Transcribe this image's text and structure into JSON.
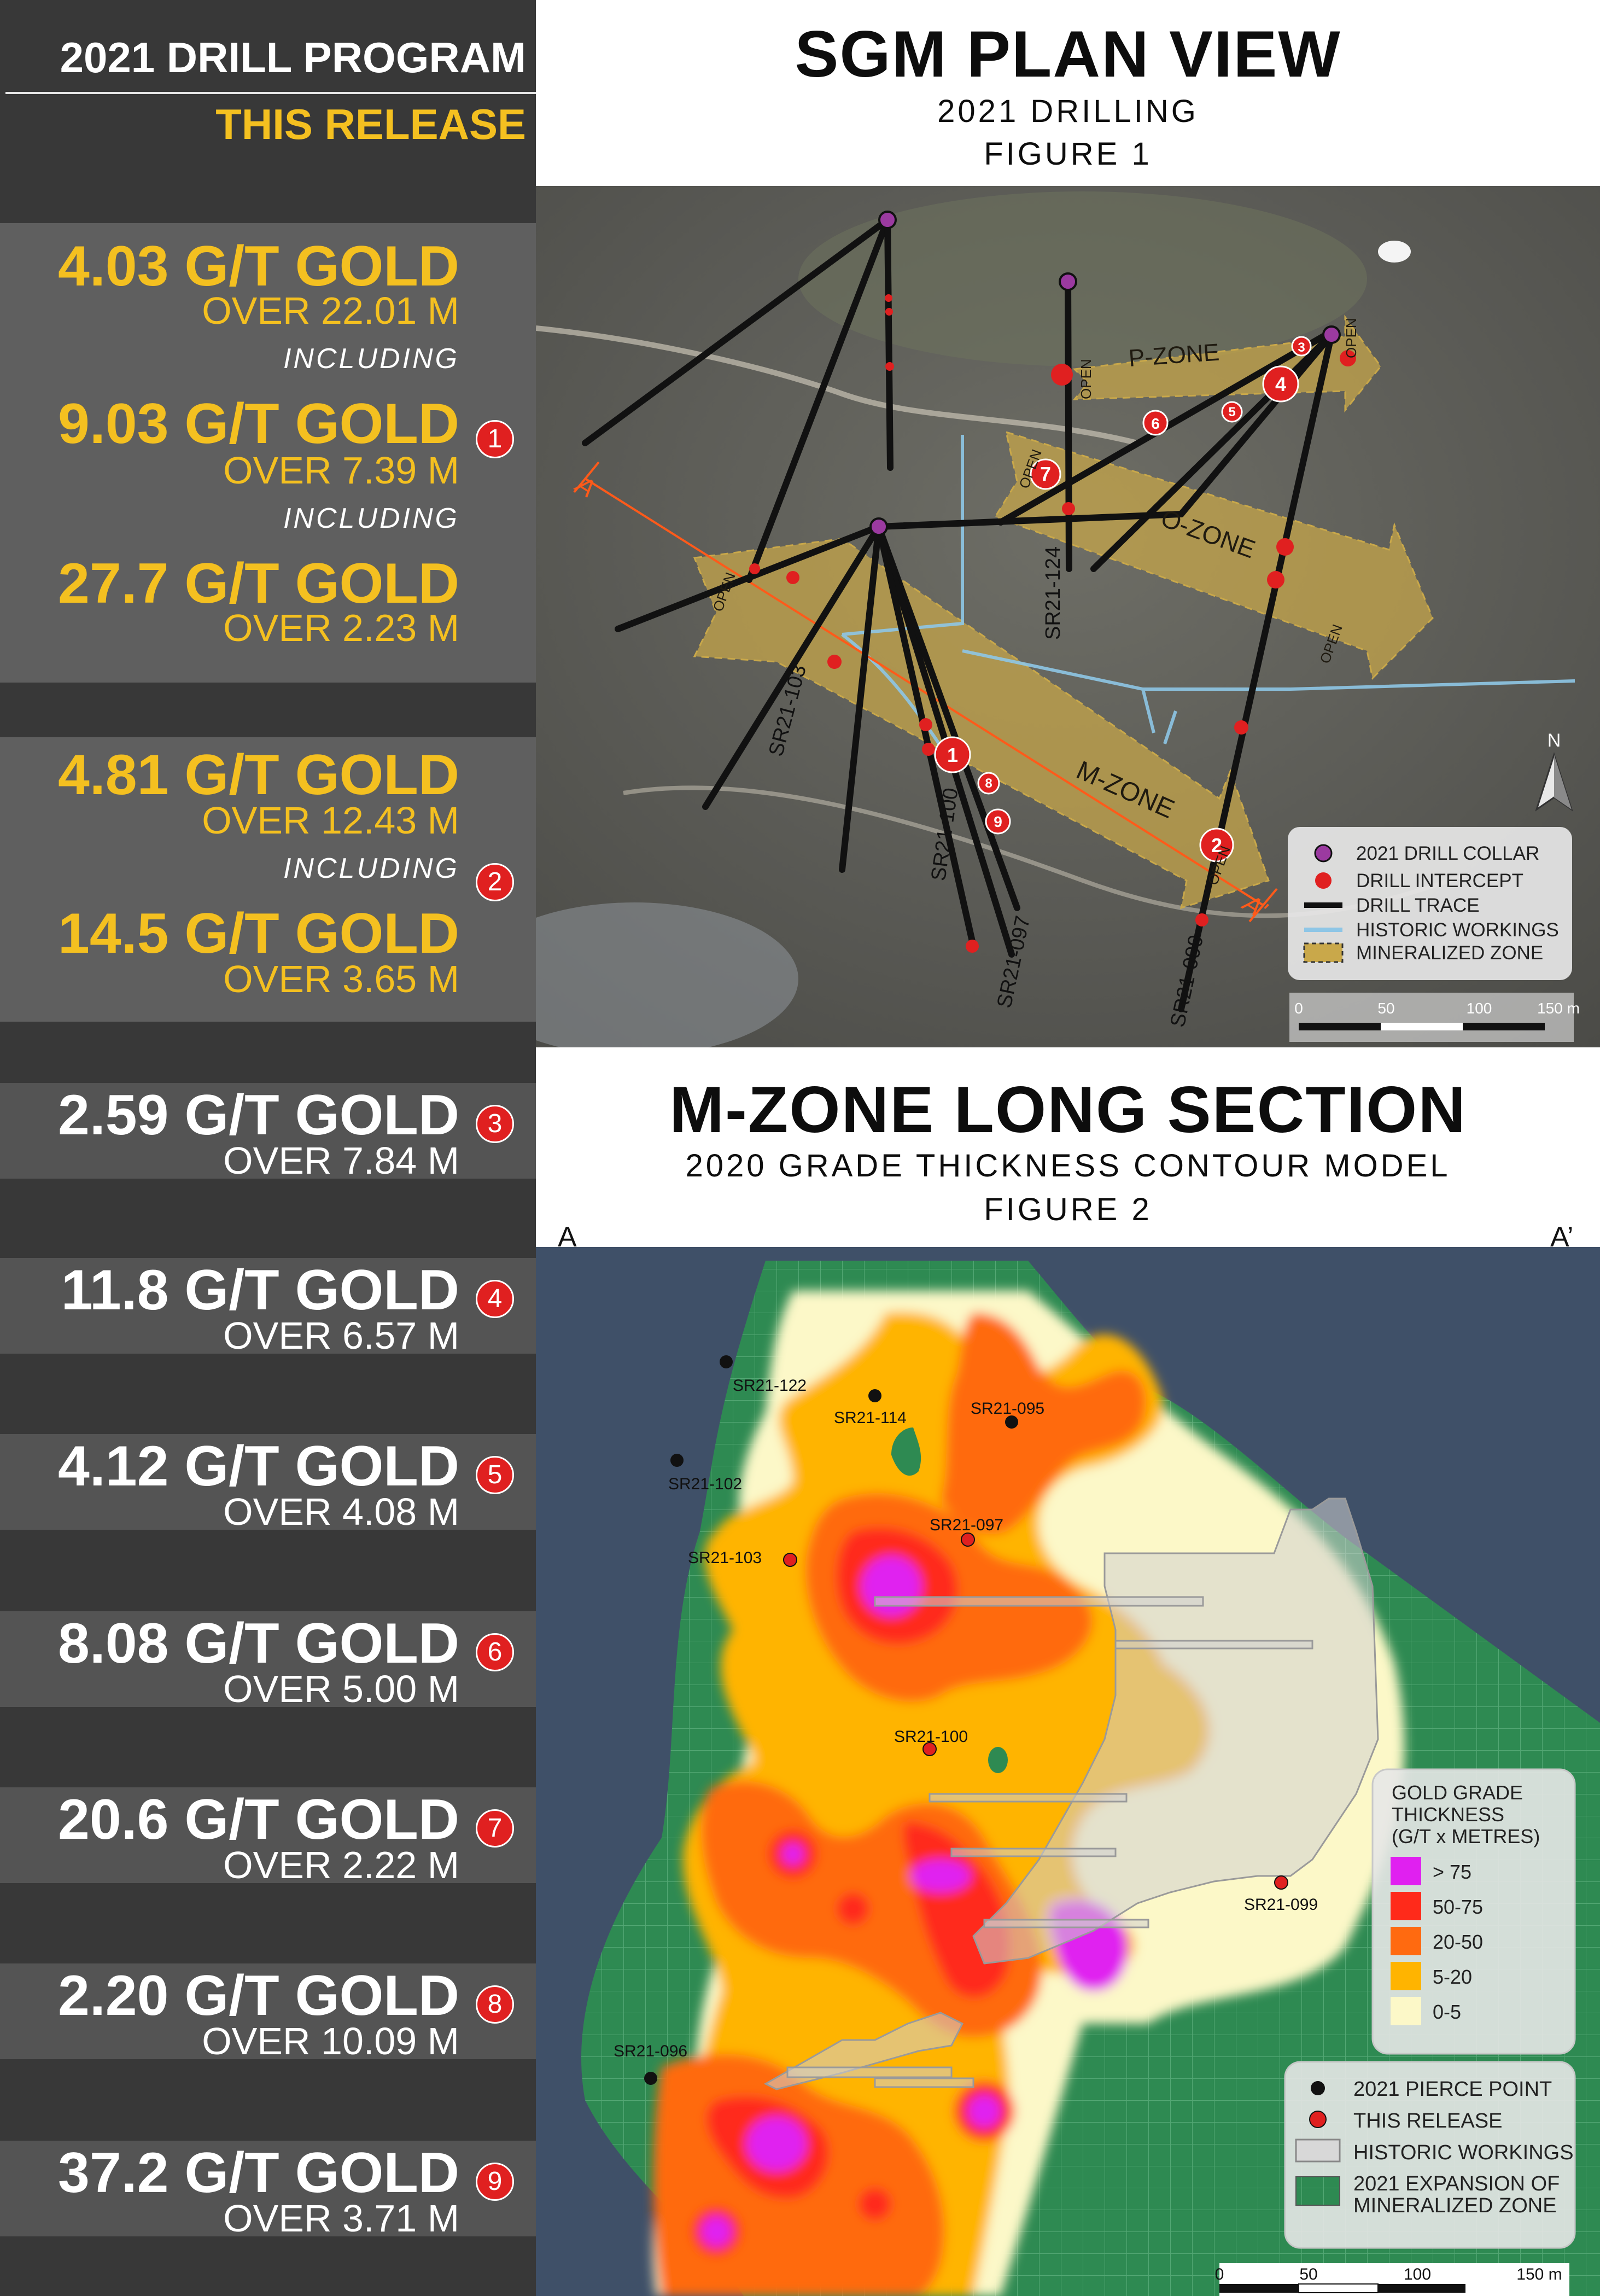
{
  "left_panel": {
    "title": "2021 DRILL PROGRAM",
    "subtitle": "THIS RELEASE",
    "intercepts": [
      {
        "id": "1",
        "style": "yellow",
        "lines": [
          {
            "kind": "big",
            "text": "4.03 G/T GOLD"
          },
          {
            "kind": "sub",
            "text": "OVER 22.01 M"
          },
          {
            "kind": "inc",
            "text": "INCLUDING"
          },
          {
            "kind": "big",
            "text": "9.03 G/T GOLD"
          },
          {
            "kind": "sub",
            "text": "OVER 7.39 M"
          },
          {
            "kind": "inc",
            "text": "INCLUDING"
          },
          {
            "kind": "big",
            "text": "27.7 G/T GOLD"
          },
          {
            "kind": "sub",
            "text": "OVER 2.23  M"
          }
        ]
      },
      {
        "id": "2",
        "style": "yellow",
        "lines": [
          {
            "kind": "big",
            "text": "4.81 G/T GOLD"
          },
          {
            "kind": "sub",
            "text": "OVER 12.43 M"
          },
          {
            "kind": "inc",
            "text": "INCLUDING"
          },
          {
            "kind": "big",
            "text": "14.5 G/T GOLD"
          },
          {
            "kind": "sub",
            "text": "OVER 3.65 M"
          }
        ]
      },
      {
        "id": "3",
        "style": "grey",
        "lines": [
          {
            "kind": "big",
            "text": "2.59 G/T GOLD"
          },
          {
            "kind": "sub",
            "text": "OVER 7.84 M"
          }
        ]
      },
      {
        "id": "4",
        "style": "grey",
        "lines": [
          {
            "kind": "big",
            "text": "11.8 G/T GOLD"
          },
          {
            "kind": "sub",
            "text": "OVER 6.57 M"
          }
        ]
      },
      {
        "id": "5",
        "style": "grey",
        "lines": [
          {
            "kind": "big",
            "text": "4.12 G/T GOLD"
          },
          {
            "kind": "sub",
            "text": "OVER 4.08 M"
          }
        ]
      },
      {
        "id": "6",
        "style": "grey",
        "lines": [
          {
            "kind": "big",
            "text": "8.08 G/T GOLD"
          },
          {
            "kind": "sub",
            "text": "OVER 5.00 M"
          }
        ]
      },
      {
        "id": "7",
        "style": "grey",
        "lines": [
          {
            "kind": "big",
            "text": "20.6 G/T GOLD"
          },
          {
            "kind": "sub",
            "text": "OVER 2.22 M"
          }
        ]
      },
      {
        "id": "8",
        "style": "grey",
        "lines": [
          {
            "kind": "big",
            "text": "2.20 G/T GOLD"
          },
          {
            "kind": "sub",
            "text": "OVER 10.09 M"
          }
        ]
      },
      {
        "id": "9",
        "style": "grey",
        "lines": [
          {
            "kind": "big",
            "text": "37.2 G/T GOLD"
          },
          {
            "kind": "sub",
            "text": "OVER 3.71  M"
          }
        ]
      }
    ]
  },
  "plan_view": {
    "title": "SGM PLAN VIEW",
    "subtitle": "2021 DRILLING",
    "figure": "FIGURE 1",
    "zones": [
      "P-ZONE",
      "O-ZONE",
      "M-ZONE"
    ],
    "open_label": "OPEN",
    "section_label_a": "A",
    "section_label_b": "A'",
    "hole_labels": [
      "SR21-124",
      "SR21-103",
      "SR21-100",
      "SR21-097",
      "SR21-099"
    ],
    "north_label": "N",
    "legend": [
      "2021 DRILL COLLAR",
      "DRILL INTERCEPT",
      "DRILL TRACE",
      "HISTORIC WORKINGS",
      "MINERALIZED ZONE"
    ],
    "scale": [
      "0",
      "50",
      "100",
      "150 m"
    ],
    "colors": {
      "collar": "#9b3aa0",
      "intercept": "#e02020",
      "trace": "#111111",
      "workings": "#8ec6e6",
      "zone": "#c9a84a"
    }
  },
  "long_section": {
    "title": "M-ZONE LONG SECTION",
    "subtitle": "2020 GRADE THICKNESS CONTOUR MODEL",
    "figure": "FIGURE 2",
    "corner_a": "A",
    "corner_b": "A’",
    "pierce_points": [
      "SR21-122",
      "SR21-114",
      "SR21-095",
      "SR21-102",
      "SR21-103",
      "SR21-097",
      "SR21-100",
      "SR21-099",
      "SR21-096"
    ],
    "grade_legend": {
      "title_lines": [
        "GOLD GRADE",
        "THICKNESS",
        "(G/T x METRES)"
      ],
      "classes": [
        {
          "label": "> 75",
          "color": "#e020f0"
        },
        {
          "label": "50-75",
          "color": "#ff2a1a"
        },
        {
          "label": "20-50",
          "color": "#ff6a10"
        },
        {
          "label": "5-20",
          "color": "#ffb400"
        },
        {
          "label": "0-5",
          "color": "#fcf8c8"
        }
      ]
    },
    "symbol_legend": [
      "2021 PIERCE POINT",
      "THIS RELEASE",
      "HISTORIC WORKINGS",
      "2021 EXPANSION OF",
      "MINERALIZED ZONE"
    ],
    "scale": [
      "0",
      "50",
      "100",
      "150 m"
    ],
    "colors": {
      "background": "#3f5068",
      "expansion": "#2e8a52"
    }
  }
}
